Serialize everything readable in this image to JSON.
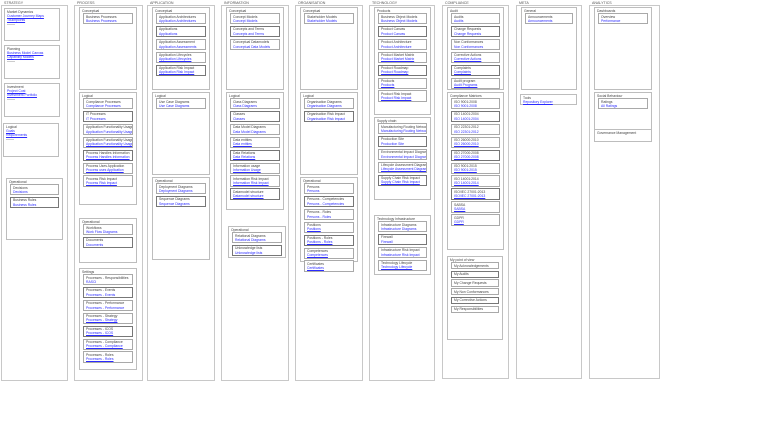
{
  "columns": [
    {
      "title": "STRATEGY",
      "groups": [
        {
          "title": "Market Dynamics",
          "links": [
            "Customer Journey Maps",
            "Touchpoints"
          ]
        },
        {
          "title": "Planning",
          "links": [
            "Business Model Canvas",
            "Capability Models"
          ]
        },
        {
          "title": "Investment",
          "links": [
            "Project Cost",
            "Investment Portfolio"
          ]
        },
        {
          "title": "Logical",
          "links": [
            "Goals",
            "Requirements"
          ]
        },
        {
          "title": "Operational",
          "items": [
            {
              "title": "Decisions",
              "link": "Decisions"
            },
            {
              "title": "Business Rules",
              "link": "Business Rules"
            }
          ]
        }
      ]
    },
    {
      "title": "PROCESS",
      "groups": [
        {
          "title": "Conceptual",
          "items": [
            {
              "title": "Business Processes",
              "link": "Business Processes"
            }
          ]
        },
        {
          "title": "Logical",
          "items": [
            {
              "title": "Compliance Processes",
              "link": "Compliance Processes"
            },
            {
              "title": "IT Processes",
              "link": "IT Processes"
            },
            {
              "title": "Application Functionality Usage",
              "link": "Application Functionality Usage"
            },
            {
              "title": "Application Functionality Usage - Lifecycles",
              "link": "Application Functionality Usage - Lifecycles"
            },
            {
              "title": "Process Handles Information",
              "link": "Process Handles Information"
            },
            {
              "title": "Process Uses Application",
              "link": "Process uses Application"
            },
            {
              "title": "Process Risk Impact",
              "link": "Process Risk Impact"
            }
          ]
        },
        {
          "title": "Operational",
          "items": [
            {
              "title": "Workflows",
              "link": "Work Flow Diagrams"
            },
            {
              "title": "Documents",
              "link": "Documents"
            }
          ]
        },
        {
          "title": "Settings",
          "items": [
            {
              "title": "Processes - Responsibilities",
              "link": "RASCI"
            },
            {
              "title": "Processes - Events",
              "link": "Processes - Events"
            },
            {
              "title": "Processes - Performance",
              "link": "Processes - Performance"
            },
            {
              "title": "Processes - Strategy",
              "link": "Processes - Strategy"
            },
            {
              "title": "Processes - ICOS",
              "link": "Processes - ICOS"
            },
            {
              "title": "Processes - Compliance",
              "link": "Processes - Compliance"
            },
            {
              "title": "Processes - Roles",
              "link": "Processes - Roles"
            }
          ]
        }
      ]
    },
    {
      "title": "APPLICATION",
      "groups": [
        {
          "title": "Conceptual",
          "items": [
            {
              "title": "Application Architectures",
              "link": "Application Architectures"
            },
            {
              "title": "Applications",
              "link": "Applications"
            },
            {
              "title": "Application Assessment",
              "link": "Application Assessments"
            },
            {
              "title": "Application Lifecycles",
              "link": "Application Lifecycles"
            },
            {
              "title": "Application Risk Impact",
              "link": "Application Risk Impact"
            }
          ]
        },
        {
          "title": "Logical",
          "items": [
            {
              "title": "Use Case Diagrams",
              "link": "Use Case Diagrams"
            }
          ]
        },
        {
          "title": "Operational",
          "items": [
            {
              "title": "Deployment Diagrams",
              "link": "Deployment Diagrams"
            },
            {
              "title": "Sequence Diagrams",
              "link": "Sequence Diagrams"
            }
          ]
        }
      ]
    },
    {
      "title": "INFORMATION",
      "groups": [
        {
          "title": "Conceptual",
          "items": [
            {
              "title": "Concept Models",
              "link": "Concept Models"
            },
            {
              "title": "Concepts and Terms",
              "link": "Concepts and Terms"
            },
            {
              "title": "Conceptual Datamodels",
              "link": "Conceptual Data Models"
            }
          ]
        },
        {
          "title": "Logical",
          "items": [
            {
              "title": "Class Diagrams",
              "link": "Class Diagrams"
            },
            {
              "title": "Classes",
              "link": "Classes"
            },
            {
              "title": "Data Model Diagrams",
              "link": "Data Model Diagrams"
            },
            {
              "title": "Data entities",
              "link": "Data entities"
            },
            {
              "title": "Data Relations",
              "link": "Data Relations"
            },
            {
              "title": "Information usage",
              "link": "Information Usage"
            },
            {
              "title": "Information Risk Impact",
              "link": "Information Risk Impact"
            },
            {
              "title": "Datamodel structure",
              "link": "Datamodel structure"
            }
          ]
        },
        {
          "title": "Operational",
          "items": [
            {
              "title": "Relational Diagrams",
              "link": "Relational Diagrams"
            },
            {
              "title": "Unknowledge lists",
              "link": "Unknowledge lists"
            }
          ]
        }
      ]
    },
    {
      "title": "ORGANISATION",
      "groups": [
        {
          "title": "Conceptual",
          "items": [
            {
              "title": "Stakeholder Models",
              "link": "Stakeholder Models"
            }
          ]
        },
        {
          "title": "Logical",
          "items": [
            {
              "title": "Organisation Diagrams",
              "link": "Organisation Diagrams"
            },
            {
              "title": "Organisation Risk Impact",
              "link": "Organisation Risk Impact"
            }
          ]
        },
        {
          "title": "Operational",
          "items": [
            {
              "title": "Persons",
              "link": "Persons"
            },
            {
              "title": "Persons - Competencies",
              "link": "Persons - Competencies"
            },
            {
              "title": "Persons - Roles",
              "link": "Persons - Roles"
            },
            {
              "title": "Positions",
              "link": "Positions"
            },
            {
              "title": "Positions - Roles",
              "link": "Positions - Roles"
            },
            {
              "title": "Competences",
              "link": "Competences"
            },
            {
              "title": "Certificates",
              "link": "Certificates"
            }
          ]
        }
      ]
    },
    {
      "title": "TECHNOLOGY",
      "groups": [
        {
          "title": "Products",
          "items": [
            {
              "title": "Business Object Models",
              "link": "Business Object Models"
            },
            {
              "title": "Product Canvas",
              "link": "Product Canvas"
            },
            {
              "title": "Product Architecture",
              "link": "Product Architecture"
            },
            {
              "title": "Product Market Matrix",
              "link": "Product Market Matrix"
            },
            {
              "title": "Product Roadmap",
              "link": "Product Roadmap"
            },
            {
              "title": "Products",
              "link": "Products"
            },
            {
              "title": "Product Risk Impact",
              "link": "Product Risk Impact"
            }
          ]
        },
        {
          "title": "Supply chain",
          "items": [
            {
              "title": "Manufacturing Routing Network",
              "link": "Manufacturing Routing Network"
            },
            {
              "title": "Production Site",
              "link": "Production Site"
            },
            {
              "title": "Environmental Impact Diagram",
              "link": "Environmental Impact Diagram"
            },
            {
              "title": "Lifecycle Assessment Diagram",
              "link": "Lifecycle Assessment Diagram"
            },
            {
              "title": "Supply Chain Risk Impact",
              "link": "Supply Chain Risk Impact"
            }
          ]
        },
        {
          "title": "Technology Infrastructure",
          "items": [
            {
              "title": "Infrastructure Diagrams",
              "link": "Infrastructure Diagrams"
            },
            {
              "title": "Firewall",
              "link": "Firewall"
            },
            {
              "title": "Infrastructure Risk Impact",
              "link": "Infrastructure Risk Impact"
            },
            {
              "title": "Technology Lifecycle",
              "link": "Technology Lifecycle"
            }
          ]
        }
      ]
    },
    {
      "title": "COMPLIANCE",
      "groups": [
        {
          "title": "Audit",
          "items": [
            {
              "title": "Audits",
              "link": "Audits"
            },
            {
              "title": "Change Requests",
              "link": "Change Requests"
            },
            {
              "title": "Non Conformances",
              "link": "Non Conformances"
            },
            {
              "title": "Corrective Actions",
              "link": "Corrective Actions"
            },
            {
              "title": "Complaints",
              "link": "Complaints"
            },
            {
              "title": "Audit program",
              "link": "Audit Programs"
            }
          ]
        },
        {
          "title": "Compliance Matrices",
          "items": [
            {
              "title": "ISO 9001:2008",
              "link": "ISO 9001:2008"
            },
            {
              "title": "ISO 14001:2004",
              "link": "ISO 14001:2004"
            },
            {
              "title": "ISO 22301:2012",
              "link": "ISO 22301:2012"
            },
            {
              "title": "ISO 26000:2010",
              "link": "ISO 26000:2010"
            },
            {
              "title": "ISO 27000:2008",
              "link": "ISO 27000:2008"
            },
            {
              "title": "ISO 9001:2015",
              "link": "ISO 9001:2015"
            },
            {
              "title": "ISO 14001:2014",
              "link": "ISO 14001:2014"
            },
            {
              "title": "ISO/IEC 27001:2013",
              "link": "ISO/IEC 27001:2013"
            },
            {
              "title": "SABSA",
              "link": "SABSA"
            },
            {
              "title": "GDPR",
              "link": "GDPR"
            }
          ]
        },
        {
          "title": "My point of view",
          "items": [
            {
              "title": "My Acknowledgements"
            },
            {
              "title": "My Audits"
            },
            {
              "title": "My Change Requests"
            },
            {
              "title": "My Non Conformances"
            },
            {
              "title": "My Corrective Actions"
            },
            {
              "title": "My Responsibilities"
            }
          ]
        }
      ]
    },
    {
      "title": "META",
      "groups": [
        {
          "title": "General",
          "items": [
            {
              "title": "Announcements",
              "link": "Announcements"
            }
          ]
        },
        {
          "title": "Tools",
          "links": [
            "Repository Explorer"
          ]
        }
      ]
    },
    {
      "title": "ANALYTICS",
      "groups": [
        {
          "title": "Dashboards",
          "items": [
            {
              "title": "Overview",
              "link": "Performance"
            }
          ]
        },
        {
          "title": "Social Behaviour",
          "items": [
            {
              "title": "Ratings",
              "link": "All Ratings"
            }
          ]
        },
        {
          "title": "Governance Management",
          "items": []
        }
      ]
    }
  ]
}
